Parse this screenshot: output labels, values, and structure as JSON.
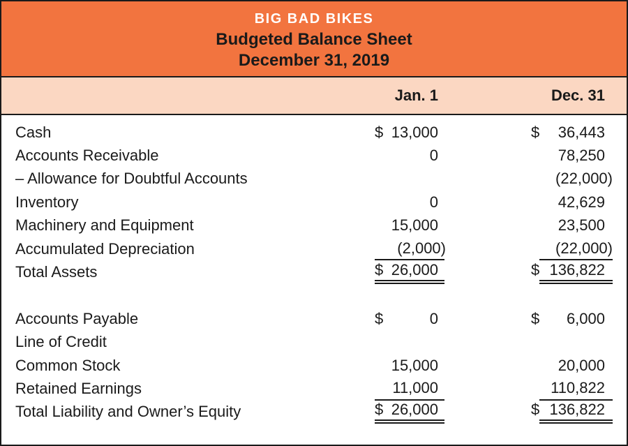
{
  "header": {
    "company": "BIG BAD BIKES",
    "report_title": "Budgeted Balance Sheet",
    "report_date": "December 31, 2019"
  },
  "columns": {
    "jan": "Jan. 1",
    "dec": "Dec. 31"
  },
  "colors": {
    "header_bg": "#F2743F",
    "column_header_bg": "#FBD7C2",
    "frame": "#1A1A1A",
    "company_text": "#FFFFFF",
    "body_text": "#1A1A1A"
  },
  "rows": [
    {
      "label": "Cash",
      "jan": {
        "dollar": "$",
        "amount": "13,000"
      },
      "dec": {
        "dollar": "$",
        "amount": "36,443"
      }
    },
    {
      "label": "Accounts Receivable",
      "jan": {
        "amount": "0"
      },
      "dec": {
        "amount": "78,250"
      }
    },
    {
      "label": "– Allowance for Doubtful Accounts",
      "jan": {},
      "dec": {
        "amount": "(22,000)"
      }
    },
    {
      "label": "Inventory",
      "jan": {
        "amount": "0"
      },
      "dec": {
        "amount": "42,629"
      }
    },
    {
      "label": "Machinery and Equipment",
      "jan": {
        "amount": "15,000"
      },
      "dec": {
        "amount": "23,500"
      }
    },
    {
      "label": "Accumulated Depreciation",
      "jan": {
        "amount": "(2,000)",
        "underline": "single"
      },
      "dec": {
        "amount": "(22,000)",
        "underline": "single"
      }
    },
    {
      "label": "Total Assets",
      "jan": {
        "dollar": "$",
        "amount": "26,000",
        "underline": "double"
      },
      "dec": {
        "dollar": "$",
        "amount": "136,822",
        "underline": "double"
      }
    },
    {
      "spacer": true
    },
    {
      "label": "Accounts Payable",
      "jan": {
        "dollar": "$",
        "amount": "0"
      },
      "dec": {
        "dollar": "$",
        "amount": "6,000"
      }
    },
    {
      "label": "Line of Credit",
      "jan": {},
      "dec": {}
    },
    {
      "label": "Common Stock",
      "jan": {
        "amount": "15,000"
      },
      "dec": {
        "amount": "20,000"
      }
    },
    {
      "label": "Retained Earnings",
      "jan": {
        "amount": "11,000",
        "underline": "single"
      },
      "dec": {
        "amount": "110,822",
        "underline": "single"
      }
    },
    {
      "label": "Total Liability and Owner’s Equity",
      "jan": {
        "dollar": "$",
        "amount": "26,000",
        "underline": "double"
      },
      "dec": {
        "dollar": "$",
        "amount": "136,822",
        "underline": "double"
      }
    }
  ]
}
